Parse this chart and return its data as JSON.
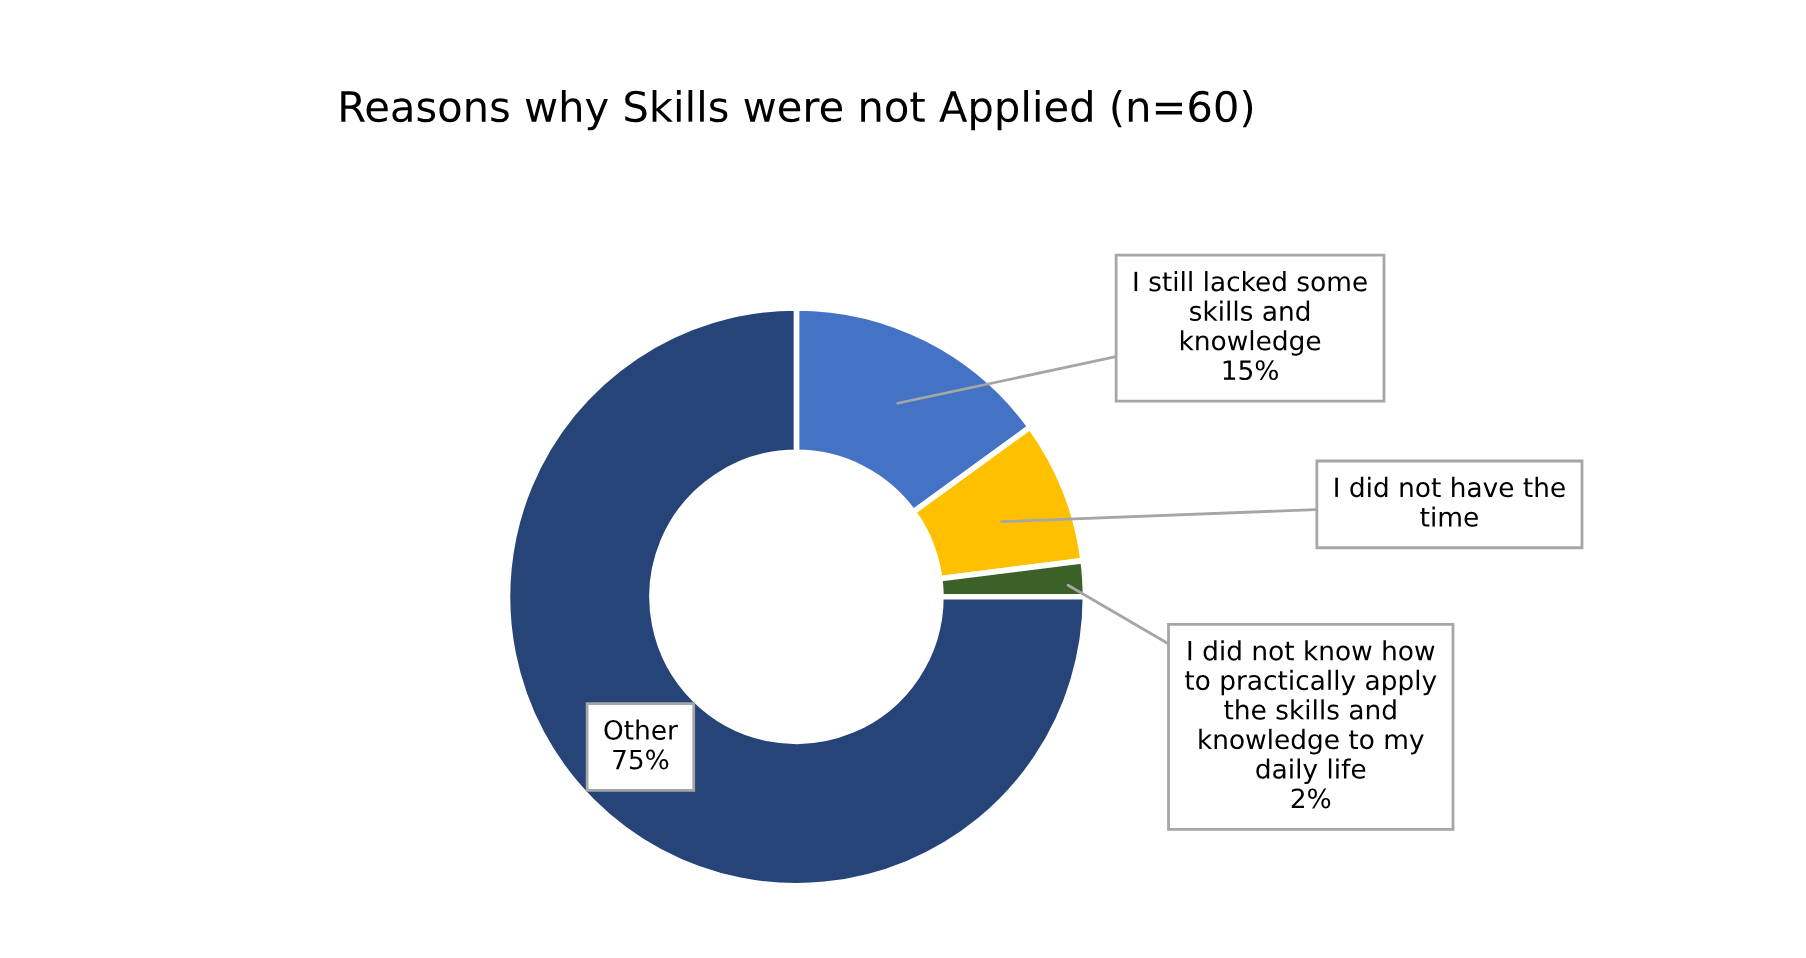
{
  "chart_data": {
    "type": "donut",
    "title": "Reasons why Skills were not Applied (n=60)",
    "categories": [
      "I still lacked some skills and knowledge",
      "I did not have the time",
      "I did not know how to practically apply the skills and knowledge to my daily life",
      "Other"
    ],
    "values": [
      15,
      8,
      2,
      75
    ],
    "value_labels": [
      "15%",
      null,
      "2%",
      "75%"
    ],
    "colors": [
      "#4472c4",
      "#ffc000",
      "#3b6128",
      "#264478"
    ],
    "legend": false
  }
}
